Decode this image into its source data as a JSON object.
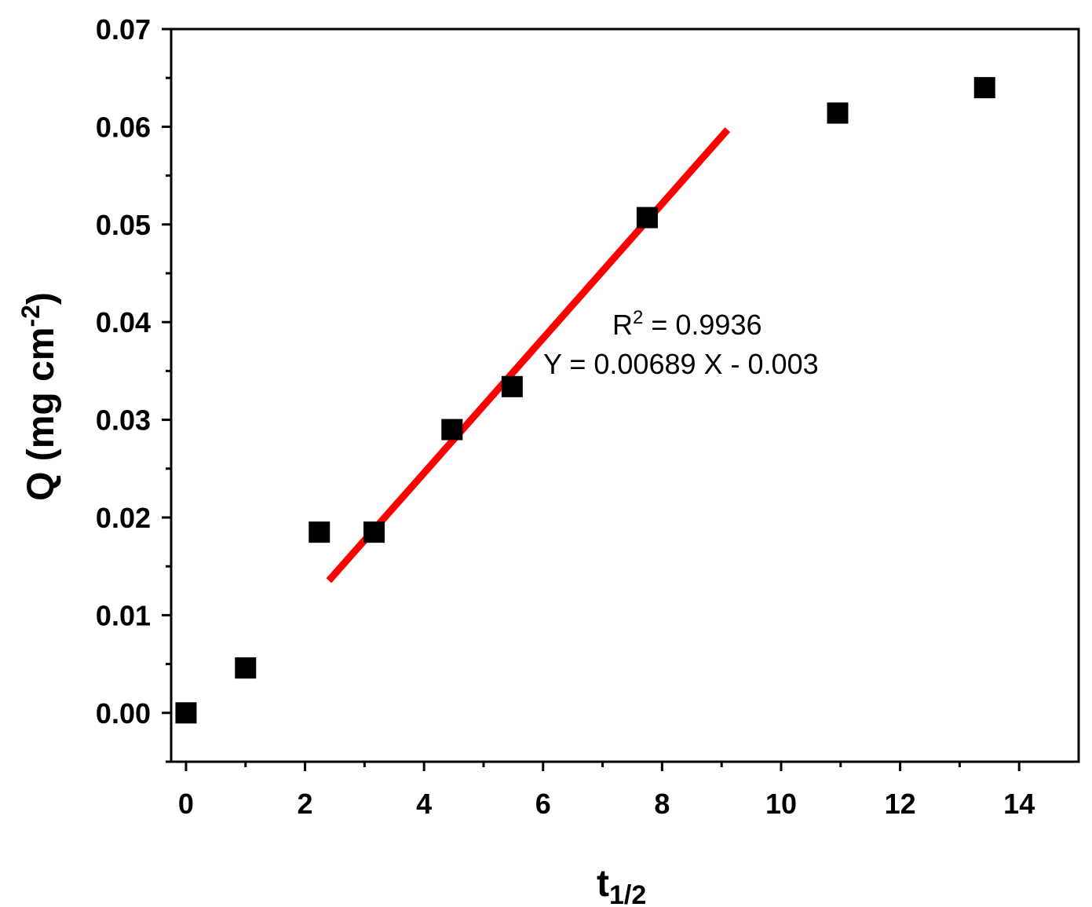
{
  "chart_data": {
    "type": "scatter",
    "xlabel": {
      "base": "t",
      "sub": "1/2"
    },
    "ylabel": {
      "pre": "Q (mg cm",
      "sup": "-2",
      "post": ")"
    },
    "xlim": [
      -0.25,
      15
    ],
    "ylim": [
      -0.005,
      0.07
    ],
    "x_ticks": [
      0,
      2,
      4,
      6,
      8,
      10,
      12,
      14
    ],
    "y_ticks": [
      "0.00",
      "0.01",
      "0.02",
      "0.03",
      "0.04",
      "0.05",
      "0.06",
      "0.07"
    ],
    "points": [
      {
        "x": 0,
        "y": 0
      },
      {
        "x": 1,
        "y": 0.0046
      },
      {
        "x": 2.24,
        "y": 0.0185
      },
      {
        "x": 3.16,
        "y": 0.0185
      },
      {
        "x": 4.47,
        "y": 0.029
      },
      {
        "x": 5.48,
        "y": 0.0334
      },
      {
        "x": 7.75,
        "y": 0.0507
      },
      {
        "x": 10.95,
        "y": 0.0614
      },
      {
        "x": 13.42,
        "y": 0.064
      }
    ],
    "fit_line": {
      "slope": 0.00689,
      "intercept": -0.003,
      "x_range": [
        2.4,
        9.1
      ],
      "color": "#ff0000"
    },
    "marker_color": "#000000",
    "annotations": {
      "r2": {
        "pre": "R",
        "sup": "2",
        "post": " = 0.9936"
      },
      "equation": "Y = 0.00689 X - 0.003"
    },
    "grid": false,
    "legend": "none"
  }
}
